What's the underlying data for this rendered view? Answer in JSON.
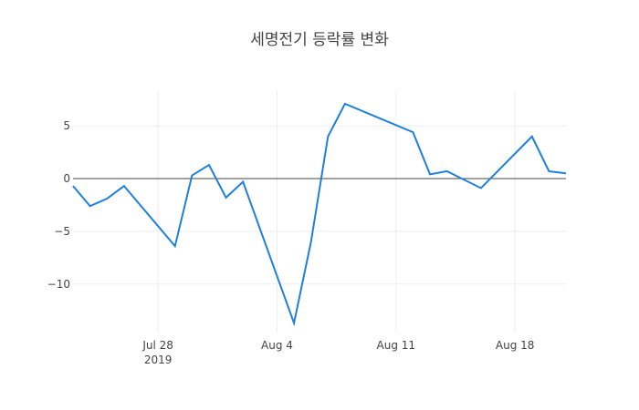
{
  "chart_data": {
    "type": "line",
    "title": "세명전기 등락률 변화",
    "x": [
      "2019-07-23",
      "2019-07-24",
      "2019-07-25",
      "2019-07-26",
      "2019-07-29",
      "2019-07-30",
      "2019-07-31",
      "2019-08-01",
      "2019-08-02",
      "2019-08-05",
      "2019-08-06",
      "2019-08-07",
      "2019-08-08",
      "2019-08-12",
      "2019-08-13",
      "2019-08-14",
      "2019-08-16",
      "2019-08-19",
      "2019-08-20",
      "2019-08-21"
    ],
    "series": [
      {
        "color": "#1f7fe0",
        "values": [
          -0.7,
          -2.6,
          -1.9,
          -0.7,
          -6.4,
          0.3,
          1.3,
          -1.8,
          -0.3,
          -13.7,
          -6.0,
          4.0,
          7.1,
          4.4,
          0.4,
          0.7,
          -0.9,
          4.0,
          0.7,
          0.5
        ]
      }
    ],
    "xlim": [
      "2019-07-23",
      "2019-08-21"
    ],
    "xticks": [
      {
        "value": "2019-07-28",
        "label": "Jul 28\n2019"
      },
      {
        "value": "2019-08-04",
        "label": "Aug 4"
      },
      {
        "value": "2019-08-11",
        "label": "Aug 11"
      },
      {
        "value": "2019-08-18",
        "label": "Aug 18"
      }
    ],
    "ylim": [
      -14.6,
      8.3
    ],
    "yticks": [
      {
        "value": -10,
        "label": "−10"
      },
      {
        "value": -5,
        "label": "−5"
      },
      0,
      5
    ],
    "grid": true
  }
}
